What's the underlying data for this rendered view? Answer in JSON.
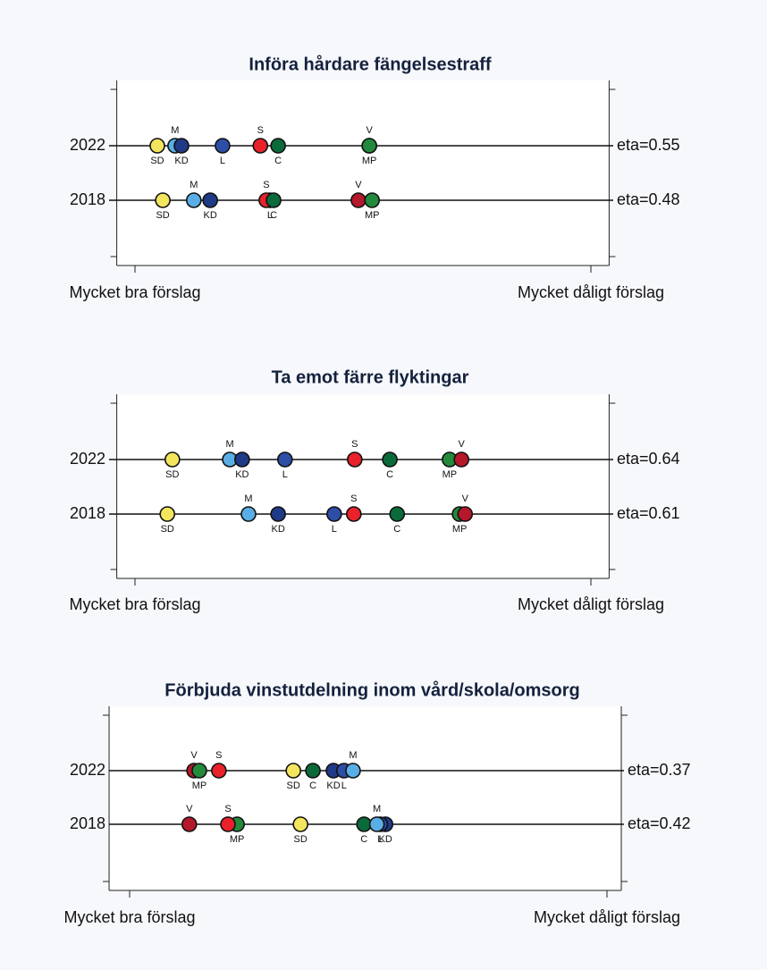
{
  "chart_data": [
    {
      "type": "dot",
      "title": "Införa hårdare fängelsestraff",
      "categories": [
        "2022",
        "2018"
      ],
      "eta": [
        "eta=0.55",
        "eta=0.48"
      ],
      "xlim": [
        -0.04,
        1.04
      ],
      "xticks": [
        {
          "value": 0,
          "label": "Mycket bra förslag"
        },
        {
          "value": 1,
          "label": "Mycket dåligt förslag"
        }
      ],
      "series": [
        {
          "name": "SD",
          "color": "#f3e65e",
          "label_position": "below",
          "values": [
            0.049,
            0.061
          ]
        },
        {
          "name": "M",
          "color": "#5aaee6",
          "label_position": "above",
          "values": [
            0.088,
            0.129
          ]
        },
        {
          "name": "KD",
          "color": "#1f3a86",
          "label_position": "below",
          "values": [
            0.102,
            0.165
          ]
        },
        {
          "name": "L",
          "color": "#2d4ea6",
          "label_position": "below",
          "values": [
            0.192,
            0.296
          ]
        },
        {
          "name": "S",
          "color": "#e8212b",
          "label_position": "above",
          "values": [
            0.275,
            0.288
          ]
        },
        {
          "name": "C",
          "color": "#0b6a39",
          "label_position": "below",
          "values": [
            0.314,
            0.304
          ]
        },
        {
          "name": "V",
          "color": "#b5172b",
          "label_position": "above",
          "values": [
            0.514,
            0.49
          ]
        },
        {
          "name": "MP",
          "color": "#238a3c",
          "label_position": "below",
          "values": [
            0.514,
            0.52
          ]
        }
      ]
    },
    {
      "type": "dot",
      "title": "Ta emot färre flyktingar",
      "categories": [
        "2022",
        "2018"
      ],
      "eta": [
        "eta=0.64",
        "eta=0.61"
      ],
      "xlim": [
        -0.04,
        1.04
      ],
      "xticks": [
        {
          "value": 0,
          "label": "Mycket bra förslag"
        },
        {
          "value": 1,
          "label": "Mycket dåligt förslag"
        }
      ],
      "series": [
        {
          "name": "SD",
          "color": "#f3e65e",
          "label_position": "below",
          "values": [
            0.082,
            0.071
          ]
        },
        {
          "name": "M",
          "color": "#5aaee6",
          "label_position": "above",
          "values": [
            0.208,
            0.249
          ]
        },
        {
          "name": "KD",
          "color": "#1f3a86",
          "label_position": "below",
          "values": [
            0.235,
            0.314
          ]
        },
        {
          "name": "L",
          "color": "#2d4ea6",
          "label_position": "below",
          "values": [
            0.329,
            0.437
          ]
        },
        {
          "name": "S",
          "color": "#e8212b",
          "label_position": "above",
          "values": [
            0.482,
            0.48
          ]
        },
        {
          "name": "C",
          "color": "#0b6a39",
          "label_position": "below",
          "values": [
            0.559,
            0.575
          ]
        },
        {
          "name": "MP",
          "color": "#238a3c",
          "label_position": "below",
          "values": [
            0.69,
            0.712
          ]
        },
        {
          "name": "V",
          "color": "#b5172b",
          "label_position": "above",
          "values": [
            0.716,
            0.724
          ]
        }
      ]
    },
    {
      "type": "dot",
      "title": "Förbjuda vinstutdelning inom vård/skola/omsorg",
      "categories": [
        "2022",
        "2018"
      ],
      "eta": [
        "eta=0.37",
        "eta=0.42"
      ],
      "xlim": [
        -0.043,
        1.03
      ],
      "xticks": [
        {
          "value": 0,
          "label": "Mycket bra förslag"
        },
        {
          "value": 1,
          "label": "Mycket dåligt förslag"
        }
      ],
      "series": [
        {
          "name": "SD",
          "color": "#f3e65e",
          "label_position": "below",
          "values": [
            0.343,
            0.358
          ]
        },
        {
          "name": "V",
          "color": "#b5172b",
          "label_position": "above",
          "values": [
            0.135,
            0.125
          ]
        },
        {
          "name": "MP",
          "color": "#238a3c",
          "label_position": "below",
          "values": [
            0.146,
            0.225
          ]
        },
        {
          "name": "S",
          "color": "#e8212b",
          "label_position": "above",
          "values": [
            0.187,
            0.206
          ]
        },
        {
          "name": "C",
          "color": "#0b6a39",
          "label_position": "below",
          "values": [
            0.384,
            0.491
          ]
        },
        {
          "name": "KD",
          "color": "#1f3a86",
          "label_position": "below",
          "values": [
            0.427,
            0.536
          ]
        },
        {
          "name": "L",
          "color": "#2d4ea6",
          "label_position": "below",
          "values": [
            0.449,
            0.525
          ]
        },
        {
          "name": "M",
          "color": "#5aaee6",
          "label_position": "above",
          "values": [
            0.468,
            0.518
          ]
        }
      ]
    }
  ]
}
